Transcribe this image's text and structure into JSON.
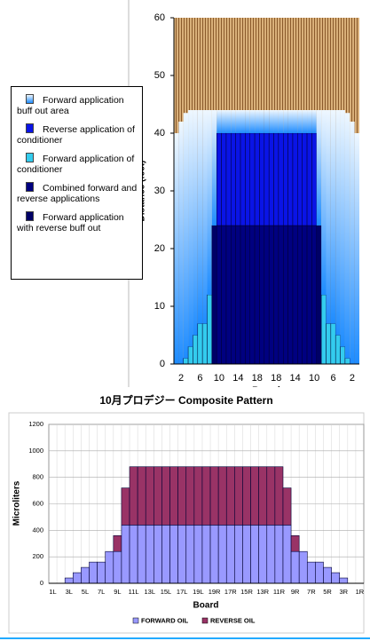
{
  "chart_data": [
    {
      "type": "lane",
      "y_label": "Distance (feet)",
      "x_label": "Board",
      "categories": [
        null,
        "2",
        null,
        null,
        null,
        "6",
        null,
        null,
        null,
        "10",
        null,
        null,
        null,
        "14",
        null,
        null,
        null,
        "18",
        null,
        null,
        null,
        "18",
        null,
        null,
        null,
        "14",
        null,
        null,
        null,
        "10",
        null,
        null,
        null,
        "6",
        null,
        null,
        null,
        "2",
        null
      ],
      "ylim": [
        0,
        60
      ],
      "yticks": [
        0,
        10,
        20,
        30,
        40,
        50,
        60
      ],
      "series": [
        {
          "name": "Forward application buff out area",
          "color": "#1e8cff",
          "values": [
            40,
            42,
            42.5,
            41,
            39,
            37,
            37,
            32,
            20,
            4,
            4,
            4,
            4,
            4,
            4,
            4,
            4,
            4,
            4,
            4,
            4,
            4,
            4,
            4,
            4,
            4,
            4,
            4,
            4,
            4,
            20,
            32,
            37,
            37,
            39,
            41,
            42.5,
            42,
            40
          ]
        },
        {
          "name": "Reverse application of conditioner",
          "color": "#0a14e6",
          "values": [
            0,
            0,
            0,
            0,
            0,
            0,
            0,
            0,
            0,
            16,
            16,
            16,
            16,
            16,
            16,
            16,
            16,
            16,
            16,
            16,
            16,
            16,
            16,
            16,
            16,
            16,
            16,
            16,
            16,
            16,
            0,
            0,
            0,
            0,
            0,
            0,
            0,
            0,
            0
          ]
        },
        {
          "name": "Forward application of conditioner",
          "color": "#33ccee",
          "values": [
            0,
            0,
            1,
            3,
            5,
            7,
            7,
            12,
            0,
            0,
            0,
            0,
            0,
            0,
            0,
            0,
            0,
            0,
            0,
            0,
            0,
            0,
            0,
            0,
            0,
            0,
            0,
            0,
            0,
            0,
            0,
            12,
            7,
            7,
            5,
            3,
            1,
            0,
            0
          ]
        },
        {
          "name": "Combined forward and reverse applications",
          "color": "#000080",
          "values": [
            0,
            0,
            0,
            0,
            0,
            0,
            0,
            0,
            0,
            24,
            24,
            24,
            24,
            24,
            24,
            24,
            24,
            24,
            24,
            24,
            24,
            24,
            24,
            24,
            24,
            24,
            24,
            24,
            24,
            24,
            0,
            0,
            0,
            0,
            0,
            0,
            0,
            0,
            0
          ]
        },
        {
          "name": "Forward application with reverse buff out",
          "color": "#000066",
          "values": [
            0,
            0,
            0,
            0,
            0,
            0,
            0,
            0,
            24,
            0,
            0,
            0,
            0,
            0,
            0,
            0,
            0,
            0,
            0,
            0,
            0,
            0,
            0,
            0,
            0,
            0,
            0,
            0,
            0,
            0,
            24,
            0,
            0,
            0,
            0,
            0,
            0,
            0,
            0
          ]
        }
      ]
    },
    {
      "type": "bar",
      "stacked": true,
      "title": "10月プロデジー Composite Pattern",
      "y_label": "Microliters",
      "x_label": "Board",
      "categories": [
        "1L",
        null,
        "3L",
        null,
        "5L",
        null,
        "7L",
        null,
        "9L",
        null,
        "11L",
        null,
        "13L",
        null,
        "15L",
        null,
        "17L",
        null,
        "19L",
        null,
        "19R",
        null,
        "17R",
        null,
        "15R",
        null,
        "13R",
        null,
        "11R",
        null,
        "9R",
        null,
        "7R",
        null,
        "5R",
        null,
        "3R",
        null,
        "1R"
      ],
      "ylim": [
        0,
        1200
      ],
      "yticks": [
        0,
        200,
        400,
        600,
        800,
        1000,
        1200
      ],
      "grid": true,
      "series": [
        {
          "name": "FORWARD OIL",
          "color": "#9999ff",
          "values": [
            0,
            0,
            40,
            80,
            120,
            160,
            160,
            240,
            240,
            440,
            440,
            440,
            440,
            440,
            440,
            440,
            440,
            440,
            440,
            440,
            440,
            440,
            440,
            440,
            440,
            440,
            440,
            440,
            440,
            440,
            240,
            240,
            160,
            160,
            120,
            80,
            40,
            0,
            0
          ]
        },
        {
          "name": "REVERSE OIL",
          "color": "#993366",
          "values": [
            0,
            0,
            0,
            0,
            0,
            0,
            0,
            0,
            120,
            280,
            440,
            440,
            440,
            440,
            440,
            440,
            440,
            440,
            440,
            440,
            440,
            440,
            440,
            440,
            440,
            440,
            440,
            440,
            440,
            280,
            120,
            0,
            0,
            0,
            0,
            0,
            0,
            0,
            0
          ]
        }
      ]
    }
  ]
}
